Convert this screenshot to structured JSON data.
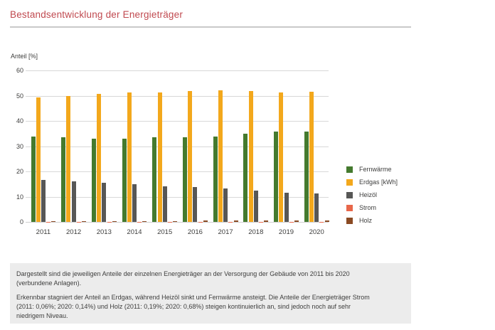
{
  "page": {
    "title": "Bestandsentwicklung der Energieträger"
  },
  "chart_data": {
    "type": "bar",
    "title": "Bestandsentwicklung der Energieträger",
    "ylabel": "Anteil [%]",
    "xlabel": "",
    "ylim": [
      0,
      60
    ],
    "yticks": [
      0,
      10,
      20,
      30,
      40,
      50,
      60
    ],
    "grid": true,
    "legend_position": "right",
    "categories": [
      "2011",
      "2012",
      "2013",
      "2014",
      "2015",
      "2016",
      "2017",
      "2018",
      "2019",
      "2020"
    ],
    "series": [
      {
        "name": "Fernwärme",
        "color": "#447a2e",
        "values": [
          33.9,
          33.4,
          33.1,
          33.1,
          33.4,
          33.5,
          33.9,
          34.9,
          35.7,
          35.9
        ]
      },
      {
        "name": "Erdgas [kWh]",
        "color": "#f3a81c",
        "values": [
          49.2,
          49.9,
          50.7,
          51.2,
          51.4,
          51.9,
          52.0,
          51.7,
          51.2,
          51.6
        ]
      },
      {
        "name": "Heizöl",
        "color": "#575756",
        "values": [
          16.5,
          16.0,
          15.4,
          14.9,
          14.2,
          13.8,
          13.2,
          12.3,
          11.6,
          11.2
        ]
      },
      {
        "name": "Strom",
        "color": "#e8674a",
        "values": [
          0.06,
          0.07,
          0.08,
          0.09,
          0.1,
          0.11,
          0.12,
          0.12,
          0.13,
          0.14
        ]
      },
      {
        "name": "Holz",
        "color": "#8a4a23",
        "values": [
          0.19,
          0.24,
          0.3,
          0.35,
          0.41,
          0.46,
          0.52,
          0.57,
          0.63,
          0.68
        ]
      }
    ]
  },
  "footer": {
    "paragraphs": [
      {
        "lines": [
          "Dargestellt sind die jeweiligen Anteile der einzelnen Energieträger an der Versorgung der Gebäude von 2011 bis 2020",
          "(verbundene Anlagen)."
        ]
      },
      {
        "lines": [
          "Erkennbar stagniert der Anteil an Erdgas, während Heizöl sinkt und Fernwärme ansteigt. Die Anteile der Energieträger Strom",
          "(2011: 0,06%; 2020: 0,14%) und Holz (2011: 0,19%; 2020: 0,68%) steigen kontinuierlich an, sind jedoch noch auf sehr",
          "niedrigem Niveau."
        ]
      }
    ]
  },
  "colors": {
    "title_red": "#c0494f",
    "text": "#3d3d3c",
    "gridline": "#d8d8d8",
    "footer_bg": "#ececec",
    "rule": "#c9c9c9"
  }
}
